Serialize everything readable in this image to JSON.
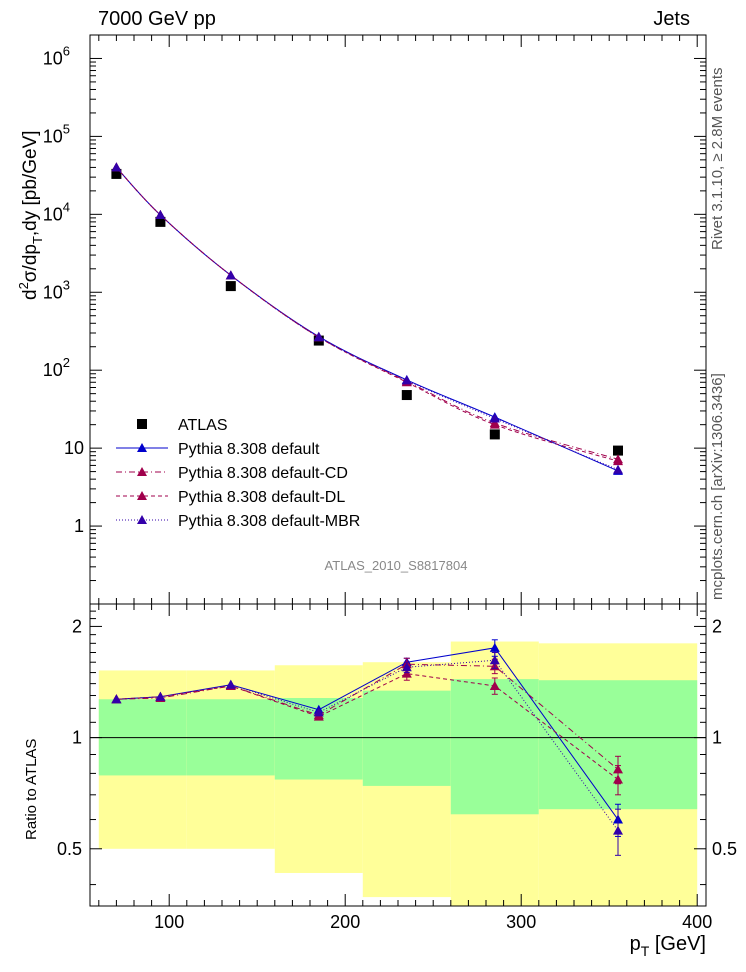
{
  "header": {
    "left": "7000 GeV pp",
    "right": "Jets"
  },
  "side_labels": {
    "rivet": "Rivet 3.1.10, ≥ 2.8M events",
    "mcplots": "mcplots.cern.ch [arXiv:1306.3436]"
  },
  "analysis_id": "ATLAS_2010_S8817804",
  "axes": {
    "main_ylabel_parts": [
      "d",
      "2",
      "σ/dp",
      "T",
      ",dy [pb/GeV]"
    ],
    "ratio_ylabel": "Ratio to ATLAS",
    "xlabel_parts": [
      "p",
      "T",
      " [GeV]"
    ]
  },
  "colors": {
    "band_inner": "#99ff99",
    "band_outer": "#ffff99",
    "data": "#000000",
    "default": "#0000cc",
    "cd": "#a0004c",
    "dl": "#a0004c",
    "mbr": "#3300aa"
  },
  "chart_data": [
    {
      "type": "scatter",
      "panel": "main",
      "yscale": "log",
      "xlim": [
        55,
        405
      ],
      "ylim": [
        0.1,
        2000000
      ],
      "y_ticks": [
        {
          "v": 1,
          "label": "1"
        },
        {
          "v": 10,
          "label": "10"
        },
        {
          "v": 100,
          "base": "10",
          "exp": "2"
        },
        {
          "v": 1000,
          "base": "10",
          "exp": "3"
        },
        {
          "v": 10000,
          "base": "10",
          "exp": "4"
        },
        {
          "v": 100000,
          "base": "10",
          "exp": "5"
        },
        {
          "v": 1000000,
          "base": "10",
          "exp": "6"
        }
      ],
      "x": [
        70,
        95,
        135,
        185,
        235,
        285,
        355
      ],
      "series": [
        {
          "name": "ATLAS",
          "key": "data",
          "marker": "square",
          "line": "none",
          "values": [
            33000,
            8000,
            1200,
            240,
            48,
            15,
            9.3
          ]
        },
        {
          "name": "Pythia 8.308 default",
          "key": "default",
          "marker": "triangle",
          "line": "solid",
          "values": [
            40000,
            9800,
            1650,
            270,
            75,
            25,
            5.1
          ]
        },
        {
          "name": "Pythia 8.308 default-CD",
          "key": "cd",
          "marker": "triangle",
          "line": "dashdot",
          "values": [
            40000,
            9800,
            1650,
            265,
            72,
            21,
            7.2
          ]
        },
        {
          "name": "Pythia 8.308 default-DL",
          "key": "dl",
          "marker": "triangle",
          "line": "dashed",
          "values": [
            40000,
            9800,
            1650,
            265,
            70,
            20,
            6.8
          ]
        },
        {
          "name": "Pythia 8.308 default-MBR",
          "key": "mbr",
          "marker": "triangle",
          "line": "dotted",
          "values": [
            40000,
            9800,
            1650,
            265,
            74,
            24,
            5.3
          ]
        }
      ],
      "legend_position": "bottom-left"
    },
    {
      "type": "scatter",
      "panel": "ratio",
      "yscale": "log",
      "xlim": [
        55,
        405
      ],
      "ylim": [
        0.35,
        2.3
      ],
      "y_ticks": [
        {
          "v": 0.5,
          "label": "0.5"
        },
        {
          "v": 1,
          "label": "1"
        },
        {
          "v": 2,
          "label": "2"
        }
      ],
      "x_ticks": [
        100,
        200,
        300,
        400
      ],
      "bands": [
        {
          "x0": 60,
          "x1": 80,
          "inner": [
            0.79,
            1.27
          ],
          "outer": [
            0.5,
            1.52
          ]
        },
        {
          "x0": 80,
          "x1": 110,
          "inner": [
            0.79,
            1.27
          ],
          "outer": [
            0.5,
            1.52
          ]
        },
        {
          "x0": 110,
          "x1": 160,
          "inner": [
            0.79,
            1.27
          ],
          "outer": [
            0.5,
            1.52
          ]
        },
        {
          "x0": 160,
          "x1": 210,
          "inner": [
            0.77,
            1.28
          ],
          "outer": [
            0.43,
            1.57
          ]
        },
        {
          "x0": 210,
          "x1": 260,
          "inner": [
            0.74,
            1.34
          ],
          "outer": [
            0.37,
            1.6
          ]
        },
        {
          "x0": 260,
          "x1": 310,
          "inner": [
            0.62,
            1.44
          ],
          "outer": [
            0.34,
            1.82
          ]
        },
        {
          "x0": 310,
          "x1": 400,
          "inner": [
            0.64,
            1.43
          ],
          "outer": [
            0.34,
            1.8
          ]
        }
      ],
      "x": [
        70,
        95,
        135,
        185,
        235,
        285,
        355
      ],
      "series": [
        {
          "name": "Pythia 8.308 default",
          "key": "default",
          "line": "solid",
          "values": [
            1.27,
            1.29,
            1.39,
            1.19,
            1.6,
            1.75,
            0.6
          ],
          "err": [
            0.01,
            0.01,
            0.02,
            0.02,
            0.04,
            0.09,
            0.06
          ]
        },
        {
          "name": "Pythia 8.308 default-CD",
          "key": "cd",
          "line": "dashdot",
          "values": [
            1.27,
            1.28,
            1.38,
            1.15,
            1.58,
            1.56,
            0.82
          ],
          "err": [
            0.01,
            0.01,
            0.02,
            0.02,
            0.06,
            0.07,
            0.07
          ]
        },
        {
          "name": "Pythia 8.308 default-DL",
          "key": "dl",
          "line": "dashed",
          "values": [
            1.27,
            1.29,
            1.38,
            1.14,
            1.49,
            1.38,
            0.77
          ],
          "err": [
            0.01,
            0.01,
            0.02,
            0.02,
            0.06,
            0.07,
            0.07
          ]
        },
        {
          "name": "Pythia 8.308 default-MBR",
          "key": "mbr",
          "line": "dotted",
          "values": [
            1.27,
            1.29,
            1.39,
            1.17,
            1.55,
            1.62,
            0.56
          ],
          "err": [
            0.01,
            0.01,
            0.02,
            0.02,
            0.05,
            0.08,
            0.08
          ]
        }
      ]
    }
  ]
}
